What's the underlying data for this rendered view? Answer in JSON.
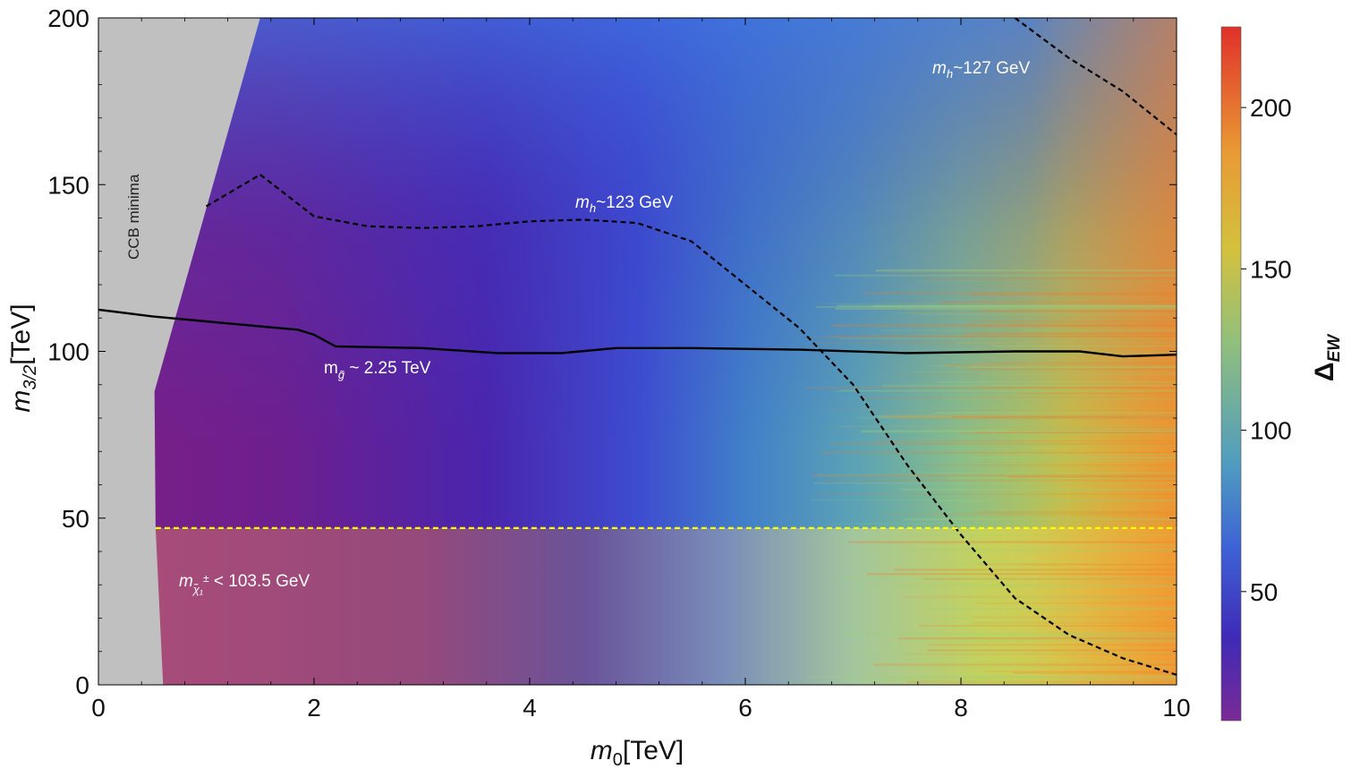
{
  "chart_data": {
    "type": "heatmap",
    "xlabel": "m",
    "xlabel_sub": "0",
    "xlabel_unit": "[TeV]",
    "ylabel": "m",
    "ylabel_sub": "3/2",
    "ylabel_unit": "[TeV]",
    "xlim": [
      0,
      10
    ],
    "ylim": [
      0,
      200
    ],
    "xticks": [
      0,
      2,
      4,
      6,
      8,
      10
    ],
    "yticks": [
      0,
      50,
      100,
      150,
      200
    ],
    "colorbar": {
      "label": "Δ",
      "label_sub": "EW",
      "range": [
        10,
        225
      ],
      "ticks": [
        50,
        100,
        150,
        200
      ],
      "colors": [
        "#7b2a96",
        "#3f2ab8",
        "#3e63d6",
        "#4f9cc0",
        "#93c07a",
        "#d3c13d",
        "#e99a34",
        "#e0302a"
      ]
    },
    "ccb_region_label": "CCB minima",
    "contours": [
      {
        "name": "mh_123",
        "style": "dashed",
        "label": "~123 GeV",
        "label_prefix": "m",
        "label_sub": "h",
        "points": [
          [
            1.0,
            143.5
          ],
          [
            1.5,
            153
          ],
          [
            2.0,
            140.5
          ],
          [
            2.5,
            137.5
          ],
          [
            3.0,
            137
          ],
          [
            3.5,
            137.5
          ],
          [
            4.0,
            139
          ],
          [
            4.5,
            139.5
          ],
          [
            5.0,
            138.5
          ],
          [
            5.5,
            133
          ],
          [
            6.0,
            120
          ],
          [
            6.5,
            107
          ],
          [
            7.0,
            90
          ],
          [
            7.5,
            66
          ],
          [
            8.0,
            45
          ],
          [
            8.5,
            26
          ],
          [
            9.0,
            15
          ],
          [
            9.5,
            8
          ],
          [
            10.0,
            3
          ]
        ]
      },
      {
        "name": "mh_127",
        "style": "dashed",
        "label": "~127 GeV",
        "label_prefix": "m",
        "label_sub": "h",
        "points": [
          [
            8.5,
            200
          ],
          [
            9.0,
            188
          ],
          [
            9.5,
            178
          ],
          [
            10.0,
            165
          ]
        ]
      },
      {
        "name": "mgluino_2.25",
        "style": "solid",
        "label": " ~ 2.25 TeV",
        "label_prefix": "m",
        "label_sub": "g̃",
        "points": [
          [
            0,
            112.5
          ],
          [
            0.5,
            110.5
          ],
          [
            1.0,
            109
          ],
          [
            1.5,
            107.5
          ],
          [
            1.85,
            106.5
          ],
          [
            2.0,
            105
          ],
          [
            2.2,
            101.5
          ],
          [
            3.0,
            101
          ],
          [
            3.7,
            99.5
          ],
          [
            4.3,
            99.5
          ],
          [
            4.8,
            101
          ],
          [
            5.5,
            101
          ],
          [
            6.5,
            100.5
          ],
          [
            7.5,
            99.5
          ],
          [
            8.5,
            100
          ],
          [
            9.1,
            100
          ],
          [
            9.5,
            98.5
          ],
          [
            10.0,
            99
          ]
        ]
      },
      {
        "name": "chargino_limit",
        "style": "dashed",
        "color": "#ffff00",
        "label": " < 103.5 GeV",
        "label_prefix": "m",
        "label_sub": "χ̃₁",
        "label_sup": "±",
        "points": [
          [
            0.53,
            47
          ],
          [
            10.0,
            47
          ]
        ]
      }
    ]
  }
}
